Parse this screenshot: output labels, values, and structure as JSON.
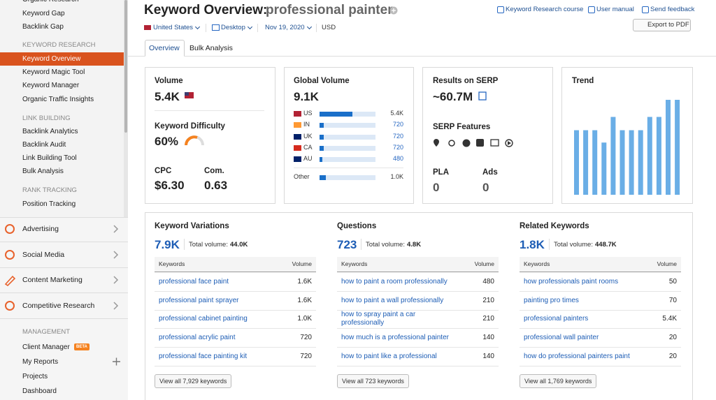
{
  "sidebar": {
    "top_items": [
      "Organic Research",
      "Keyword Gap",
      "Backlink Gap"
    ],
    "sections": [
      {
        "heading": "KEYWORD RESEARCH",
        "items": [
          "Keyword Overview",
          "Keyword Magic Tool",
          "Keyword Manager",
          "Organic Traffic Insights"
        ]
      },
      {
        "heading": "LINK BUILDING",
        "items": [
          "Backlink Analytics",
          "Backlink Audit",
          "Link Building Tool",
          "Bulk Analysis"
        ]
      },
      {
        "heading": "RANK TRACKING",
        "items": [
          "Position Tracking"
        ]
      }
    ],
    "groups": [
      "Advertising",
      "Social Media",
      "Content Marketing",
      "Competitive Research"
    ],
    "management": {
      "heading": "MANAGEMENT",
      "items": [
        "Client Manager",
        "My Reports",
        "Projects",
        "Dashboard"
      ],
      "badge": "BETA"
    }
  },
  "header": {
    "title": "Keyword Overview:",
    "keyword": "professional painter",
    "links": [
      "Keyword Research course",
      "User manual",
      "Send feedback"
    ],
    "export": "Export to PDF",
    "filters": [
      "United States",
      "Desktop",
      "Nov 19, 2020",
      "USD"
    ],
    "tabs": [
      "Overview",
      "Bulk Analysis"
    ]
  },
  "volume": {
    "label": "Volume",
    "value": "5.4K",
    "kd_label": "Keyword Difficulty",
    "kd": "60%",
    "cpc_label": "CPC",
    "cpc": "$6.30",
    "com_label": "Com.",
    "com": "0.63"
  },
  "global_volume": {
    "label": "Global Volume",
    "total": {
      "value": 9100,
      "label": "9.1K"
    },
    "rows": [
      {
        "code": "US",
        "value": 5400,
        "label": "5.4K"
      },
      {
        "code": "IN",
        "value": 720,
        "label": "720"
      },
      {
        "code": "UK",
        "value": 720,
        "label": "720"
      },
      {
        "code": "CA",
        "value": 720,
        "label": "720"
      },
      {
        "code": "AU",
        "value": 480,
        "label": "480"
      }
    ],
    "other": {
      "code": "Other",
      "value": 1000,
      "label": "1.0K"
    }
  },
  "serp": {
    "label": "Results on SERP",
    "value": "~60.7M",
    "features_label": "SERP Features",
    "pla_label": "PLA",
    "pla": "0",
    "ads_label": "Ads",
    "ads": "0"
  },
  "trend": {
    "title": "Trend",
    "values": [
      68,
      68,
      68,
      55,
      82,
      68,
      68,
      68,
      82,
      82,
      100,
      100
    ],
    "ylim": [
      0,
      100
    ],
    "color": "#6aaee6"
  },
  "tables": [
    {
      "title": "Keyword Variations",
      "count": "7.9K",
      "total_label": "Total volume:",
      "total": "44.0K",
      "headers": [
        "Keywords",
        "Volume"
      ],
      "rows": [
        [
          "professional face paint",
          "1.6K"
        ],
        [
          "professional paint sprayer",
          "1.6K"
        ],
        [
          "professional cabinet painting",
          "1.0K"
        ],
        [
          "professional acrylic paint",
          "720"
        ],
        [
          "professional face painting kit",
          "720"
        ]
      ],
      "button": "View all 7,929 keywords"
    },
    {
      "title": "Questions",
      "count": "723",
      "total_label": "Total volume:",
      "total": "4.8K",
      "headers": [
        "Keywords",
        "Volume"
      ],
      "rows": [
        [
          "how to paint a room professionally",
          "480"
        ],
        [
          "how to paint a wall professionally",
          "210"
        ],
        [
          "how to spray paint a car professionally",
          "210"
        ],
        [
          "how much is a professional painter",
          "140"
        ],
        [
          "how to paint like a professional",
          "140"
        ]
      ],
      "button": "View all 723 keywords"
    },
    {
      "title": "Related Keywords",
      "count": "1.8K",
      "total_label": "Total volume:",
      "total": "448.7K",
      "headers": [
        "Keywords",
        "Volume"
      ],
      "rows": [
        [
          "how professionals paint rooms",
          "50"
        ],
        [
          "painting pro times",
          "70"
        ],
        [
          "professional painters",
          "5.4K"
        ],
        [
          "professional wall painter",
          "20"
        ],
        [
          "how do professional painters paint",
          "20"
        ]
      ],
      "button": "View all 1,769 keywords"
    }
  ]
}
